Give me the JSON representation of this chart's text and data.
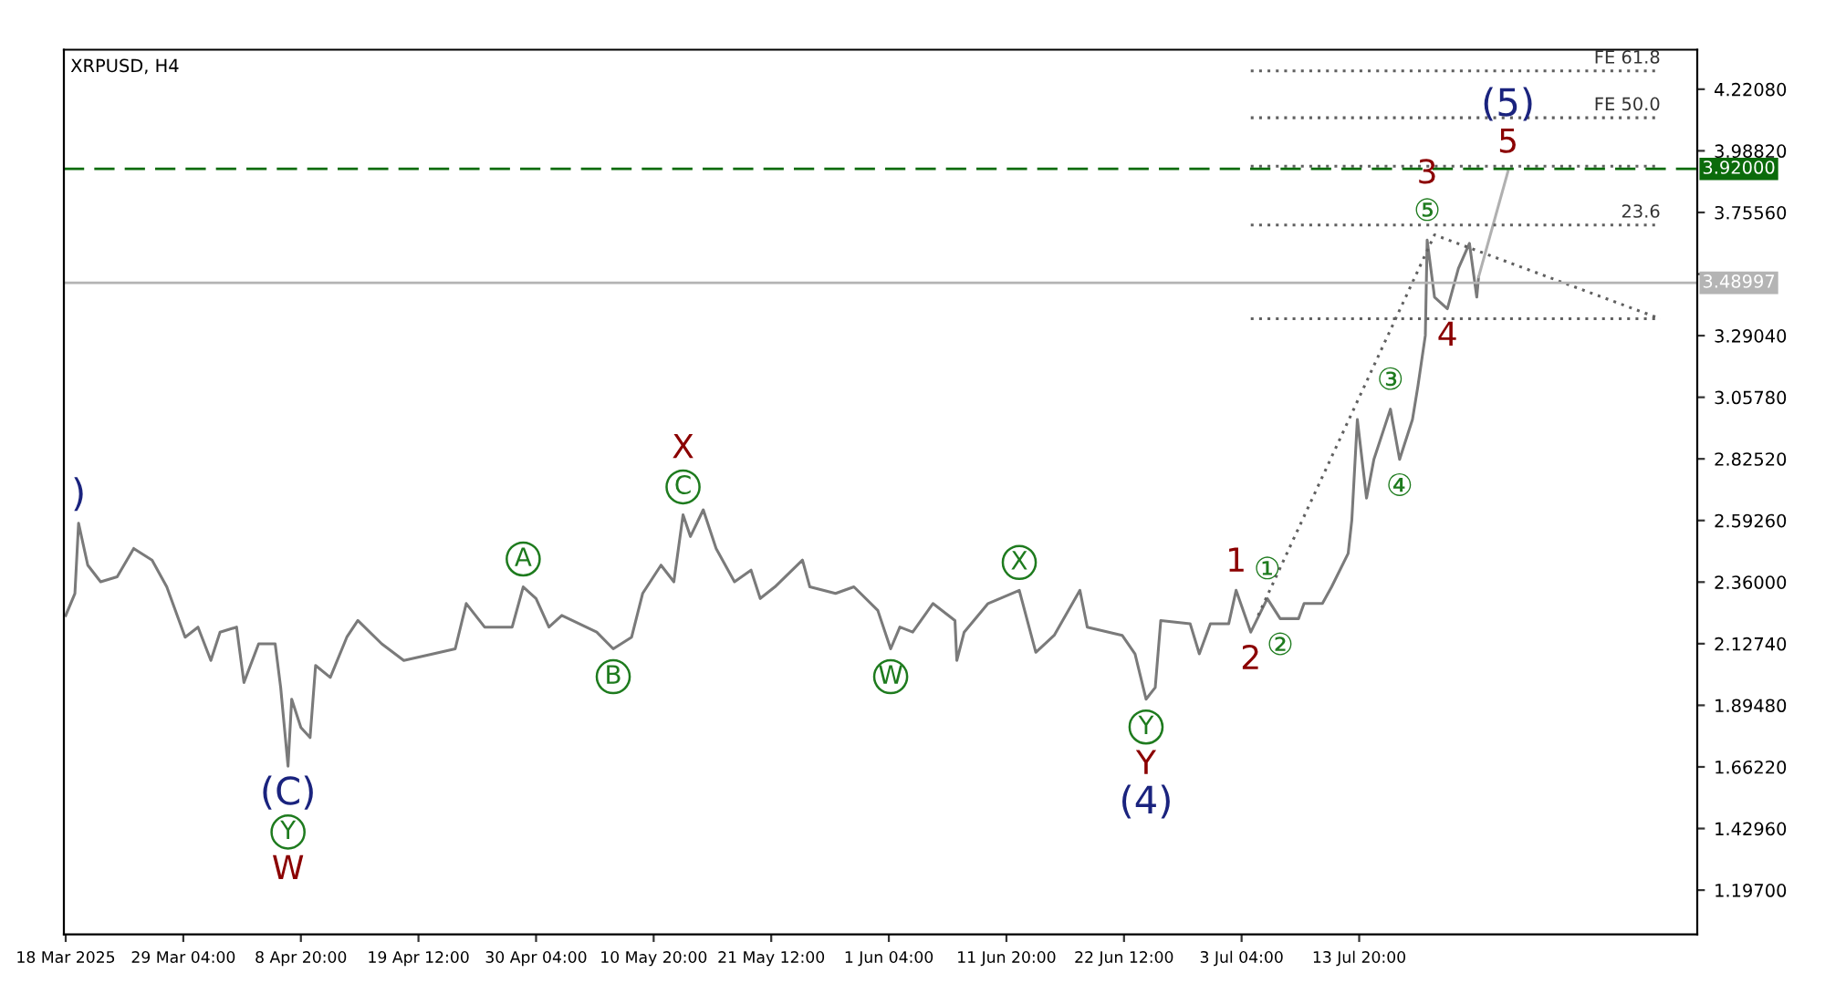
{
  "chart_data": {
    "type": "line",
    "title": "XRPUSD, H4",
    "xlim": [
      "2025-03-18T08:00",
      "2025-08-13T12:00"
    ],
    "ylim": [
      1.03,
      4.37
    ],
    "xticks": [
      {
        "value": "2025-03-18T12:00",
        "label": "18 Mar 2025"
      },
      {
        "value": "2025-03-29T04:00",
        "label": "29 Mar 04:00"
      },
      {
        "value": "2025-04-08T20:00",
        "label": "8 Apr 20:00"
      },
      {
        "value": "2025-04-19T12:00",
        "label": "19 Apr 12:00"
      },
      {
        "value": "2025-04-30T04:00",
        "label": "30 Apr 04:00"
      },
      {
        "value": "2025-05-10T20:00",
        "label": "10 May 20:00"
      },
      {
        "value": "2025-05-21T12:00",
        "label": "21 May 12:00"
      },
      {
        "value": "2025-06-01T04:00",
        "label": "1 Jun 04:00"
      },
      {
        "value": "2025-06-11T20:00",
        "label": "11 Jun 20:00"
      },
      {
        "value": "2025-06-22T12:00",
        "label": "22 Jun 12:00"
      },
      {
        "value": "2025-07-03T04:00",
        "label": "3 Jul 04:00"
      },
      {
        "value": "2025-07-13T20:00",
        "label": "13 Jul 20:00"
      }
    ],
    "yticks": [
      {
        "value": 4.2208,
        "label": "4.22080"
      },
      {
        "value": 3.9882,
        "label": "3.98820"
      },
      {
        "value": 3.7556,
        "label": "3.75560"
      },
      {
        "value": 3.523,
        "label": null
      },
      {
        "value": 3.2904,
        "label": "3.29040"
      },
      {
        "value": 3.0578,
        "label": "3.05780"
      },
      {
        "value": 2.8252,
        "label": "2.82520"
      },
      {
        "value": 2.5926,
        "label": "2.59260"
      },
      {
        "value": 2.36,
        "label": "2.36000"
      },
      {
        "value": 2.1274,
        "label": "2.12740"
      },
      {
        "value": 1.8948,
        "label": "1.89480"
      },
      {
        "value": 1.6622,
        "label": "1.66220"
      },
      {
        "value": 1.4296,
        "label": "1.42960"
      },
      {
        "value": 1.197,
        "label": "1.19700"
      }
    ],
    "grid": false,
    "legend": false,
    "series": [
      {
        "color": "#7a7a7a",
        "x": [
          "2025-03-18T12:00",
          "2025-03-19T08:00",
          "2025-03-19T16:00",
          "2025-03-20T12:00",
          "2025-03-21T16:00",
          "2025-03-23T04:00",
          "2025-03-24T16:00",
          "2025-03-26T08:00",
          "2025-03-27T16:00",
          "2025-03-29T08:00",
          "2025-03-30T12:00",
          "2025-03-31T16:00",
          "2025-04-01T12:00",
          "2025-04-03T00:00",
          "2025-04-03T16:00",
          "2025-04-05T00:00",
          "2025-04-06T12:00",
          "2025-04-07T00:00",
          "2025-04-07T16:00",
          "2025-04-08T00:00",
          "2025-04-08T20:00",
          "2025-04-09T16:00",
          "2025-04-10T04:00",
          "2025-04-11T12:00",
          "2025-04-13T00:00",
          "2025-04-14T00:00",
          "2025-04-16T04:00",
          "2025-04-18T04:00",
          "2025-04-20T20:00",
          "2025-04-22T20:00",
          "2025-04-23T20:00",
          "2025-04-25T12:00",
          "2025-04-28T00:00",
          "2025-04-29T00:00",
          "2025-04-30T04:00",
          "2025-05-01T08:00",
          "2025-05-02T12:00",
          "2025-05-05T16:00",
          "2025-05-07T04:00",
          "2025-05-08T20:00",
          "2025-05-09T20:00",
          "2025-05-11T12:00",
          "2025-05-12T16:00",
          "2025-05-13T12:00",
          "2025-05-14T04:00",
          "2025-05-15T08:00",
          "2025-05-16T12:00",
          "2025-05-18T04:00",
          "2025-05-19T16:00",
          "2025-05-20T12:00",
          "2025-05-21T20:00",
          "2025-05-24T08:00",
          "2025-05-25T00:00",
          "2025-05-27T08:00",
          "2025-05-29T00:00",
          "2025-05-31T04:00",
          "2025-06-01T08:00",
          "2025-06-02T04:00",
          "2025-06-03T08:00",
          "2025-06-05T04:00",
          "2025-06-07T04:00",
          "2025-06-07T08:00",
          "2025-06-08T00:00",
          "2025-06-10T04:00",
          "2025-06-13T00:00",
          "2025-06-14T12:00",
          "2025-06-16T04:00",
          "2025-06-18T12:00",
          "2025-06-19T04:00",
          "2025-06-22T08:00",
          "2025-06-23T12:00",
          "2025-06-24T12:00",
          "2025-06-25T08:00",
          "2025-06-25T20:00",
          "2025-06-28T12:00",
          "2025-06-29T08:00",
          "2025-06-30T08:00",
          "2025-07-02T00:00",
          "2025-07-02T16:00",
          "2025-07-04T00:00",
          "2025-07-05T12:00",
          "2025-07-06T16:00",
          "2025-07-08T08:00",
          "2025-07-08T20:00",
          "2025-07-10T12:00",
          "2025-07-11T08:00",
          "2025-07-12T20:00",
          "2025-07-13T04:00",
          "2025-07-13T16:00",
          "2025-07-14T12:00",
          "2025-07-15T04:00",
          "2025-07-16T16:00",
          "2025-07-17T12:00",
          "2025-07-18T16:00",
          "2025-07-19T04:00",
          "2025-07-19T20:00",
          "2025-07-20T00:00",
          "2025-07-20T16:00",
          "2025-07-21T20:00",
          "2025-07-22T20:00",
          "2025-07-23T20:00",
          "2025-07-24T12:00",
          "2025-07-24T16:00"
        ],
        "values": [
          2.234,
          2.317,
          2.582,
          2.424,
          2.361,
          2.38,
          2.487,
          2.443,
          2.342,
          2.152,
          2.19,
          2.064,
          2.171,
          2.19,
          1.981,
          2.127,
          2.127,
          1.962,
          1.665,
          1.918,
          1.811,
          1.773,
          2.045,
          2.0,
          2.152,
          2.215,
          2.127,
          2.064,
          2.089,
          2.108,
          2.279,
          2.19,
          2.19,
          2.342,
          2.298,
          2.19,
          2.234,
          2.171,
          2.108,
          2.152,
          2.317,
          2.424,
          2.361,
          2.614,
          2.532,
          2.633,
          2.487,
          2.361,
          2.405,
          2.298,
          2.342,
          2.443,
          2.342,
          2.317,
          2.342,
          2.253,
          2.108,
          2.19,
          2.171,
          2.279,
          2.215,
          2.064,
          2.171,
          2.279,
          2.329,
          2.095,
          2.159,
          2.329,
          2.19,
          2.159,
          2.089,
          1.918,
          1.962,
          2.215,
          2.203,
          2.089,
          2.203,
          2.203,
          2.329,
          2.171,
          2.298,
          2.222,
          2.222,
          2.279,
          2.279,
          2.342,
          2.468,
          2.595,
          2.974,
          2.677,
          2.823,
          3.013,
          2.823,
          2.974,
          3.101,
          3.291,
          3.651,
          3.436,
          3.392,
          3.544,
          3.639,
          3.436,
          3.512
        ]
      },
      {
        "color": "#b0b0b0",
        "x": [
          "2025-07-24T16:00",
          "2025-07-27T08:00"
        ],
        "values": [
          3.512,
          3.911
        ]
      },
      {
        "color": "#606060",
        "line_style": "dotted",
        "x": [
          "2025-07-04T16:00",
          "2025-07-20T16:00",
          "2025-08-10T04:00"
        ],
        "values": [
          2.234,
          3.671,
          3.354
        ]
      },
      {
        "color": "#606060",
        "line_style": "dotted",
        "name": "FE 61.8",
        "x": [
          "2025-07-04T00:00",
          "2025-08-10T04:00"
        ],
        "values": [
          4.29,
          4.29
        ]
      },
      {
        "color": "#606060",
        "line_style": "dotted",
        "name": "FE 50.0",
        "x": [
          "2025-07-04T00:00",
          "2025-08-10T04:00"
        ],
        "values": [
          4.113,
          4.113
        ]
      },
      {
        "color": "#606060",
        "line_style": "dotted",
        "x": [
          "2025-07-04T00:00",
          "2025-08-10T04:00"
        ],
        "values": [
          3.93,
          3.93
        ]
      },
      {
        "color": "#606060",
        "line_style": "dotted",
        "name": "23.6",
        "x": [
          "2025-07-04T00:00",
          "2025-08-10T04:00"
        ],
        "values": [
          3.708,
          3.708
        ]
      },
      {
        "color": "#606060",
        "line_style": "dotted",
        "x": [
          "2025-07-04T00:00",
          "2025-08-10T04:00"
        ],
        "values": [
          3.354,
          3.354
        ]
      }
    ],
    "ref_lines": [
      {
        "axis": "y",
        "value": 3.92,
        "label": "3.92000",
        "color": "#0b6b0b",
        "line_style": "dashed"
      },
      {
        "axis": "y",
        "value": 3.48997,
        "label": "3.48997",
        "color": "#b4b4b4",
        "line_style": "solid"
      }
    ],
    "annotations": [
      {
        "text": "5",
        "x": "2025-07-27T08:00",
        "y": 3.911
      },
      {
        "text": "(5)",
        "x": "2025-07-27T08:00",
        "y": 3.911
      },
      {
        "text": "⑤",
        "x": "2025-07-20T00:00",
        "y": 3.651
      },
      {
        "text": "3",
        "x": "2025-07-20T00:00",
        "y": 3.651
      },
      {
        "text": "4",
        "x": "2025-07-21T20:00",
        "y": 3.392
      },
      {
        "text": "③",
        "x": "2025-07-16T16:00",
        "y": 3.013
      },
      {
        "text": "④",
        "x": "2025-07-17T12:00",
        "y": 2.823
      },
      {
        "text": "①",
        "x": "2025-07-05T12:00",
        "y": 2.298
      },
      {
        "text": "1",
        "x": "2025-07-02T16:00",
        "y": 2.329
      },
      {
        "text": "2",
        "x": "2025-07-04T00:00",
        "y": 2.171
      },
      {
        "text": "②",
        "x": "2025-07-06T16:00",
        "y": 2.222
      },
      {
        "text": "Y",
        "x": "2025-06-24T12:00",
        "y": 1.918
      },
      {
        "text": "Y",
        "x": "2025-06-24T12:00",
        "y": 1.918
      },
      {
        "text": "(4)",
        "x": "2025-06-24T12:00",
        "y": 1.918
      },
      {
        "text": "X",
        "x": "2025-06-13T00:00",
        "y": 2.329
      },
      {
        "text": "W",
        "x": "2025-06-01T08:00",
        "y": 2.108
      },
      {
        "text": "C",
        "x": "2025-05-13T12:00",
        "y": 2.614
      },
      {
        "text": "X",
        "x": "2025-05-13T12:00",
        "y": 2.614
      },
      {
        "text": "A",
        "x": "2025-04-29T00:00",
        "y": 2.342
      },
      {
        "text": "B",
        "x": "2025-05-07T04:00",
        "y": 2.108
      },
      {
        "text": "(C)",
        "x": "2025-04-07T16:00",
        "y": 1.665
      },
      {
        "text": "Y",
        "x": "2025-04-07T16:00",
        "y": 1.665
      },
      {
        "text": "W",
        "x": "2025-04-07T16:00",
        "y": 1.665
      },
      {
        "text": ")",
        "x": "2025-03-19T16:00",
        "y": 2.582
      }
    ]
  }
}
